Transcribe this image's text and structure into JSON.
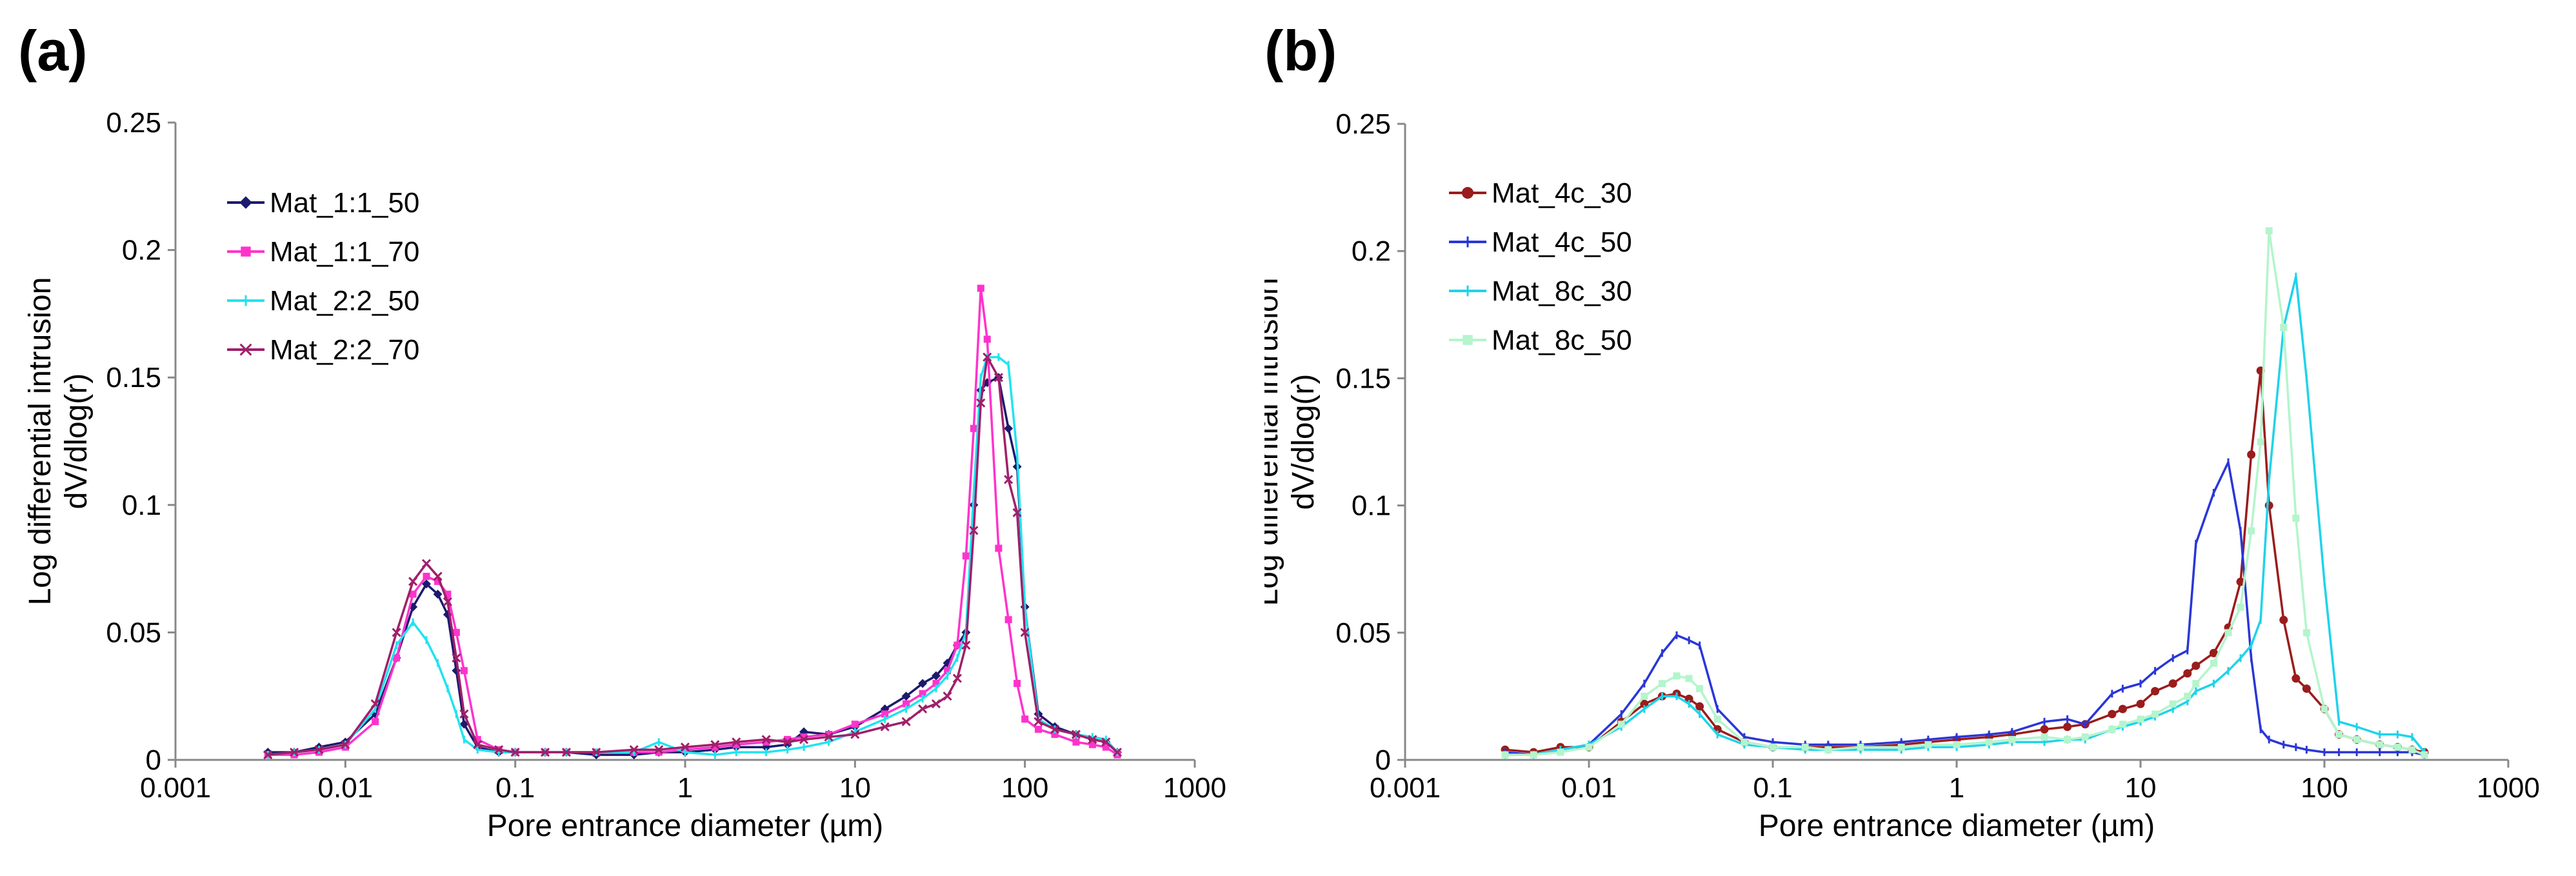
{
  "chart_data": [
    {
      "panel_label": "(a)",
      "type": "line",
      "x_scale": "log",
      "xlabel": "Pore entrance diameter (µm)",
      "ylabel_lines": [
        "Log differential intrusion",
        "dV/dlog(r)"
      ],
      "xlim": [
        0.001,
        1000
      ],
      "ylim": [
        0,
        0.25
      ],
      "x_ticks": [
        0.001,
        0.01,
        0.1,
        1,
        10,
        100,
        1000
      ],
      "x_tick_labels": [
        "0.001",
        "0.01",
        "0.1",
        "1",
        "10",
        "100",
        "1000"
      ],
      "y_ticks": [
        0,
        0.05,
        0.1,
        0.15,
        0.2,
        0.25
      ],
      "y_tick_labels": [
        "0",
        "0.05",
        "0.1",
        "0.15",
        "0.2",
        "0.25"
      ],
      "legend_position": "top-left",
      "series": [
        {
          "name": "Mat_1:1_50",
          "color": "#1c1a6e",
          "marker": "diamond",
          "x": [
            0.0035,
            0.005,
            0.007,
            0.01,
            0.015,
            0.02,
            0.025,
            0.03,
            0.035,
            0.04,
            0.045,
            0.05,
            0.06,
            0.08,
            0.1,
            0.15,
            0.2,
            0.3,
            0.5,
            0.7,
            1,
            1.5,
            2,
            3,
            4,
            5,
            7,
            10,
            15,
            20,
            25,
            30,
            35,
            40,
            45,
            50,
            55,
            60,
            70,
            80,
            90,
            100,
            120,
            150,
            200,
            250,
            300,
            350
          ],
          "y": [
            0.003,
            0.003,
            0.005,
            0.007,
            0.018,
            0.04,
            0.06,
            0.069,
            0.065,
            0.057,
            0.035,
            0.014,
            0.005,
            0.003,
            0.003,
            0.003,
            0.003,
            0.002,
            0.002,
            0.003,
            0.003,
            0.004,
            0.005,
            0.005,
            0.006,
            0.011,
            0.01,
            0.013,
            0.02,
            0.025,
            0.03,
            0.033,
            0.038,
            0.045,
            0.05,
            0.1,
            0.145,
            0.148,
            0.15,
            0.13,
            0.115,
            0.06,
            0.018,
            0.013,
            0.01,
            0.008,
            0.007,
            0.003
          ]
        },
        {
          "name": "Mat_1:1_70",
          "color": "#ff33cc",
          "marker": "square",
          "x": [
            0.0035,
            0.005,
            0.007,
            0.01,
            0.015,
            0.02,
            0.025,
            0.03,
            0.035,
            0.04,
            0.045,
            0.05,
            0.06,
            0.08,
            0.1,
            0.15,
            0.2,
            0.3,
            0.5,
            0.7,
            1,
            1.5,
            2,
            3,
            4,
            5,
            7,
            10,
            15,
            20,
            25,
            30,
            35,
            40,
            45,
            50,
            55,
            60,
            70,
            80,
            90,
            100,
            120,
            150,
            200,
            250,
            300,
            350
          ],
          "y": [
            0.002,
            0.002,
            0.003,
            0.005,
            0.015,
            0.04,
            0.065,
            0.072,
            0.07,
            0.065,
            0.05,
            0.035,
            0.008,
            0.004,
            0.003,
            0.003,
            0.003,
            0.003,
            0.003,
            0.003,
            0.004,
            0.005,
            0.006,
            0.007,
            0.008,
            0.009,
            0.01,
            0.014,
            0.018,
            0.022,
            0.026,
            0.03,
            0.035,
            0.045,
            0.08,
            0.13,
            0.185,
            0.165,
            0.083,
            0.055,
            0.03,
            0.016,
            0.012,
            0.01,
            0.007,
            0.006,
            0.005,
            0.002
          ]
        },
        {
          "name": "Mat_2:2_50",
          "color": "#22e3f0",
          "marker": "dash",
          "x": [
            0.0035,
            0.005,
            0.007,
            0.01,
            0.015,
            0.02,
            0.025,
            0.03,
            0.035,
            0.04,
            0.045,
            0.05,
            0.06,
            0.08,
            0.1,
            0.15,
            0.2,
            0.3,
            0.5,
            0.7,
            1,
            1.5,
            2,
            3,
            4,
            5,
            7,
            10,
            15,
            20,
            25,
            30,
            35,
            40,
            45,
            50,
            55,
            60,
            70,
            80,
            90,
            100,
            120,
            150,
            200,
            250,
            300,
            350
          ],
          "y": [
            0.002,
            0.003,
            0.004,
            0.006,
            0.02,
            0.045,
            0.054,
            0.047,
            0.038,
            0.028,
            0.018,
            0.008,
            0.004,
            0.003,
            0.003,
            0.003,
            0.003,
            0.003,
            0.003,
            0.007,
            0.003,
            0.002,
            0.003,
            0.003,
            0.004,
            0.005,
            0.007,
            0.011,
            0.016,
            0.02,
            0.024,
            0.028,
            0.033,
            0.04,
            0.05,
            0.105,
            0.15,
            0.158,
            0.158,
            0.155,
            0.12,
            0.06,
            0.016,
            0.012,
            0.01,
            0.009,
            0.008,
            0.003
          ]
        },
        {
          "name": "Mat_2:2_70",
          "color": "#a01f6a",
          "marker": "x",
          "x": [
            0.0035,
            0.005,
            0.007,
            0.01,
            0.015,
            0.02,
            0.025,
            0.03,
            0.035,
            0.04,
            0.045,
            0.05,
            0.06,
            0.08,
            0.1,
            0.15,
            0.2,
            0.3,
            0.5,
            0.7,
            1,
            1.5,
            2,
            3,
            4,
            5,
            7,
            10,
            15,
            20,
            25,
            30,
            35,
            40,
            45,
            50,
            55,
            60,
            70,
            80,
            90,
            100,
            120,
            150,
            200,
            250,
            300,
            350
          ],
          "y": [
            0.002,
            0.003,
            0.004,
            0.006,
            0.022,
            0.05,
            0.07,
            0.077,
            0.072,
            0.062,
            0.04,
            0.018,
            0.006,
            0.004,
            0.003,
            0.003,
            0.003,
            0.003,
            0.004,
            0.004,
            0.005,
            0.006,
            0.007,
            0.008,
            0.007,
            0.008,
            0.009,
            0.01,
            0.013,
            0.015,
            0.02,
            0.022,
            0.025,
            0.032,
            0.045,
            0.09,
            0.14,
            0.158,
            0.15,
            0.11,
            0.097,
            0.05,
            0.015,
            0.012,
            0.01,
            0.008,
            0.007,
            0.003
          ]
        }
      ]
    },
    {
      "panel_label": "(b)",
      "type": "line",
      "x_scale": "log",
      "xlabel": "Pore entrance diameter (µm)",
      "ylabel_lines": [
        "Log differential intrusion",
        "dV/dlog(r)"
      ],
      "xlim": [
        0.001,
        1000
      ],
      "ylim": [
        0,
        0.25
      ],
      "x_ticks": [
        0.001,
        0.01,
        0.1,
        1,
        10,
        100,
        1000
      ],
      "x_tick_labels": [
        "0.001",
        "0.01",
        "0.1",
        "1",
        "10",
        "100",
        "1000"
      ],
      "y_ticks": [
        0,
        0.05,
        0.1,
        0.15,
        0.2,
        0.25
      ],
      "y_tick_labels": [
        "0",
        "0.05",
        "0.1",
        "0.15",
        "0.2",
        "0.25"
      ],
      "legend_position": "top-left",
      "series": [
        {
          "name": "Mat_4c_30",
          "color": "#9b1c1c",
          "marker": "circle",
          "x": [
            0.0035,
            0.005,
            0.007,
            0.01,
            0.015,
            0.02,
            0.025,
            0.03,
            0.035,
            0.04,
            0.05,
            0.07,
            0.1,
            0.15,
            0.2,
            0.3,
            0.5,
            0.7,
            1,
            1.5,
            2,
            3,
            4,
            5,
            7,
            8,
            10,
            12,
            15,
            18,
            20,
            25,
            30,
            35,
            40,
            45,
            50,
            60,
            70,
            80,
            100,
            120,
            150,
            200,
            250,
            300,
            350
          ],
          "y": [
            0.004,
            0.003,
            0.005,
            0.005,
            0.015,
            0.022,
            0.025,
            0.026,
            0.024,
            0.021,
            0.012,
            0.007,
            0.005,
            0.005,
            0.005,
            0.005,
            0.006,
            0.007,
            0.008,
            0.009,
            0.01,
            0.012,
            0.013,
            0.014,
            0.018,
            0.02,
            0.022,
            0.027,
            0.03,
            0.034,
            0.037,
            0.042,
            0.052,
            0.07,
            0.12,
            0.153,
            0.1,
            0.055,
            0.032,
            0.028,
            0.02,
            0.01,
            0.008,
            0.006,
            0.005,
            0.004,
            0.003
          ]
        },
        {
          "name": "Mat_4c_50",
          "color": "#2a36d8",
          "marker": "dash",
          "x": [
            0.0035,
            0.005,
            0.007,
            0.01,
            0.015,
            0.02,
            0.025,
            0.03,
            0.035,
            0.04,
            0.05,
            0.07,
            0.1,
            0.15,
            0.2,
            0.3,
            0.5,
            0.7,
            1,
            1.5,
            2,
            3,
            4,
            5,
            7,
            8,
            10,
            12,
            15,
            18,
            20,
            25,
            30,
            35,
            40,
            45,
            50,
            60,
            70,
            80,
            100,
            120,
            150,
            200,
            250,
            300,
            350
          ],
          "y": [
            0.003,
            0.002,
            0.004,
            0.006,
            0.018,
            0.03,
            0.042,
            0.049,
            0.047,
            0.045,
            0.02,
            0.009,
            0.007,
            0.006,
            0.006,
            0.006,
            0.007,
            0.008,
            0.009,
            0.01,
            0.011,
            0.015,
            0.016,
            0.014,
            0.026,
            0.028,
            0.03,
            0.035,
            0.04,
            0.043,
            0.085,
            0.105,
            0.117,
            0.09,
            0.04,
            0.012,
            0.008,
            0.006,
            0.005,
            0.004,
            0.003,
            0.003,
            0.003,
            0.003,
            0.003,
            0.003,
            0.002
          ]
        },
        {
          "name": "Mat_8c_30",
          "color": "#1fd3ea",
          "marker": "dash",
          "x": [
            0.0035,
            0.005,
            0.007,
            0.01,
            0.015,
            0.02,
            0.025,
            0.03,
            0.035,
            0.04,
            0.05,
            0.07,
            0.1,
            0.15,
            0.2,
            0.3,
            0.5,
            0.7,
            1,
            1.5,
            2,
            3,
            4,
            5,
            7,
            8,
            10,
            12,
            15,
            18,
            20,
            25,
            30,
            35,
            40,
            45,
            50,
            60,
            70,
            80,
            100,
            120,
            150,
            200,
            250,
            300,
            350
          ],
          "y": [
            0.002,
            0.002,
            0.004,
            0.006,
            0.013,
            0.02,
            0.025,
            0.025,
            0.022,
            0.018,
            0.01,
            0.006,
            0.005,
            0.004,
            0.004,
            0.004,
            0.004,
            0.005,
            0.005,
            0.006,
            0.007,
            0.007,
            0.008,
            0.008,
            0.012,
            0.013,
            0.015,
            0.017,
            0.02,
            0.023,
            0.027,
            0.03,
            0.035,
            0.04,
            0.045,
            0.055,
            0.11,
            0.17,
            0.19,
            0.15,
            0.07,
            0.015,
            0.013,
            0.01,
            0.01,
            0.009,
            0.003
          ]
        },
        {
          "name": "Mat_8c_50",
          "color": "#b4f5cc",
          "marker": "square",
          "x": [
            0.0035,
            0.005,
            0.007,
            0.01,
            0.015,
            0.02,
            0.025,
            0.03,
            0.035,
            0.04,
            0.05,
            0.07,
            0.1,
            0.15,
            0.2,
            0.3,
            0.5,
            0.7,
            1,
            1.5,
            2,
            3,
            4,
            5,
            7,
            8,
            10,
            12,
            15,
            18,
            20,
            25,
            30,
            35,
            40,
            45,
            50,
            60,
            70,
            80,
            100,
            120,
            150,
            200,
            250,
            300,
            350
          ],
          "y": [
            0.002,
            0.002,
            0.003,
            0.005,
            0.014,
            0.025,
            0.03,
            0.033,
            0.032,
            0.028,
            0.016,
            0.007,
            0.005,
            0.005,
            0.004,
            0.005,
            0.005,
            0.006,
            0.006,
            0.007,
            0.008,
            0.009,
            0.008,
            0.009,
            0.012,
            0.014,
            0.016,
            0.018,
            0.022,
            0.025,
            0.03,
            0.038,
            0.05,
            0.06,
            0.09,
            0.125,
            0.208,
            0.17,
            0.095,
            0.05,
            0.02,
            0.01,
            0.008,
            0.006,
            0.005,
            0.004,
            0.002
          ]
        }
      ]
    }
  ]
}
